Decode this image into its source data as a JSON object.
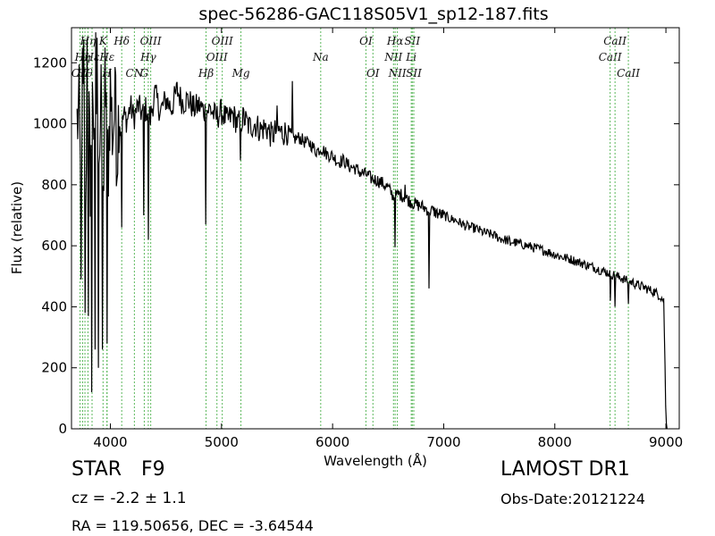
{
  "chart_data": {
    "type": "line",
    "title": "spec-56286-GAC118S05V1_sp12-187.fits",
    "xlabel": "Wavelength (Å)",
    "ylabel": "Flux (relative)",
    "xlim": [
      3650,
      9120
    ],
    "ylim": [
      0,
      1315
    ],
    "xticks": [
      4000,
      5000,
      6000,
      7000,
      8000,
      9000
    ],
    "yticks": [
      0,
      200,
      400,
      600,
      800,
      1000,
      1200
    ],
    "grid": false,
    "line_color": "#000000",
    "marker_color": "#5cb85c",
    "spectrum": [
      [
        3700,
        1000
      ],
      [
        3720,
        1040
      ],
      [
        3740,
        620
      ],
      [
        3760,
        1200
      ],
      [
        3780,
        780
      ],
      [
        3800,
        1100
      ],
      [
        3820,
        820
      ],
      [
        3840,
        1220
      ],
      [
        3860,
        760
      ],
      [
        3880,
        1180
      ],
      [
        3900,
        900
      ],
      [
        3920,
        1080
      ],
      [
        3940,
        800
      ],
      [
        3960,
        1150
      ],
      [
        3980,
        860
      ],
      [
        4000,
        1120
      ],
      [
        4020,
        960
      ],
      [
        4040,
        1060
      ],
      [
        4060,
        900
      ],
      [
        4080,
        1080
      ],
      [
        4100,
        980
      ],
      [
        4120,
        1030
      ],
      [
        4150,
        1010
      ],
      [
        4180,
        1060
      ],
      [
        4210,
        1020
      ],
      [
        4250,
        1060
      ],
      [
        4290,
        1030
      ],
      [
        4320,
        1050
      ],
      [
        4360,
        1020
      ],
      [
        4400,
        1100
      ],
      [
        4450,
        1040
      ],
      [
        4500,
        1080
      ],
      [
        4550,
        1050
      ],
      [
        4600,
        1110
      ],
      [
        4650,
        1070
      ],
      [
        4700,
        1080
      ],
      [
        4750,
        1050
      ],
      [
        4800,
        1060
      ],
      [
        4850,
        1040
      ],
      [
        4900,
        1050
      ],
      [
        4950,
        1020
      ],
      [
        5000,
        1040
      ],
      [
        5050,
        1010
      ],
      [
        5100,
        1030
      ],
      [
        5150,
        1000
      ],
      [
        5200,
        1020
      ],
      [
        5250,
        990
      ],
      [
        5300,
        1000
      ],
      [
        5350,
        980
      ],
      [
        5400,
        990
      ],
      [
        5450,
        960
      ],
      [
        5500,
        980
      ],
      [
        5550,
        970
      ],
      [
        5600,
        975
      ],
      [
        5650,
        950
      ],
      [
        5700,
        955
      ],
      [
        5750,
        940
      ],
      [
        5800,
        935
      ],
      [
        5850,
        910
      ],
      [
        5900,
        920
      ],
      [
        5950,
        900
      ],
      [
        6000,
        895
      ],
      [
        6050,
        875
      ],
      [
        6100,
        880
      ],
      [
        6150,
        860
      ],
      [
        6200,
        855
      ],
      [
        6250,
        840
      ],
      [
        6300,
        835
      ],
      [
        6350,
        820
      ],
      [
        6400,
        815
      ],
      [
        6450,
        805
      ],
      [
        6500,
        790
      ],
      [
        6550,
        760
      ],
      [
        6600,
        770
      ],
      [
        6650,
        760
      ],
      [
        6700,
        745
      ],
      [
        6750,
        735
      ],
      [
        6800,
        730
      ],
      [
        6850,
        720
      ],
      [
        6900,
        715
      ],
      [
        6950,
        705
      ],
      [
        7000,
        700
      ],
      [
        7050,
        690
      ],
      [
        7100,
        685
      ],
      [
        7150,
        675
      ],
      [
        7200,
        665
      ],
      [
        7250,
        660
      ],
      [
        7300,
        655
      ],
      [
        7350,
        645
      ],
      [
        7400,
        640
      ],
      [
        7450,
        635
      ],
      [
        7500,
        625
      ],
      [
        7550,
        620
      ],
      [
        7600,
        615
      ],
      [
        7650,
        610
      ],
      [
        7700,
        605
      ],
      [
        7750,
        600
      ],
      [
        7800,
        595
      ],
      [
        7850,
        590
      ],
      [
        7900,
        585
      ],
      [
        7950,
        578
      ],
      [
        8000,
        572
      ],
      [
        8050,
        565
      ],
      [
        8100,
        560
      ],
      [
        8150,
        555
      ],
      [
        8200,
        548
      ],
      [
        8250,
        542
      ],
      [
        8300,
        535
      ],
      [
        8350,
        530
      ],
      [
        8400,
        522
      ],
      [
        8450,
        515
      ],
      [
        8500,
        510
      ],
      [
        8550,
        500
      ],
      [
        8600,
        495
      ],
      [
        8650,
        485
      ],
      [
        8700,
        480
      ],
      [
        8750,
        470
      ],
      [
        8800,
        465
      ],
      [
        8850,
        455
      ],
      [
        8900,
        448
      ],
      [
        8950,
        435
      ],
      [
        8980,
        420
      ],
      [
        8990,
        250
      ],
      [
        9000,
        30
      ],
      [
        9010,
        0
      ]
    ],
    "dips": [
      [
        3735,
        490
      ],
      [
        3770,
        380
      ],
      [
        3800,
        370
      ],
      [
        3830,
        120
      ],
      [
        3860,
        260
      ],
      [
        3890,
        200
      ],
      [
        3930,
        260
      ],
      [
        3970,
        280
      ],
      [
        4102,
        660
      ],
      [
        4300,
        700
      ],
      [
        4340,
        620
      ],
      [
        4861,
        670
      ],
      [
        5170,
        880
      ],
      [
        5890,
        910
      ],
      [
        6563,
        595
      ],
      [
        6870,
        460
      ],
      [
        7600,
        600
      ],
      [
        8498,
        420
      ],
      [
        8542,
        400
      ],
      [
        8662,
        410
      ]
    ],
    "peaks": [
      [
        3750,
        1250
      ],
      [
        3790,
        1280
      ],
      [
        3870,
        1300
      ],
      [
        3950,
        1250
      ],
      [
        4050,
        1160
      ],
      [
        5640,
        1140
      ],
      [
        5500,
        1060
      ],
      [
        6650,
        800
      ]
    ],
    "lines": [
      {
        "name": "OII",
        "wl": 3727,
        "row": 3
      },
      {
        "name": "Hη",
        "wl": 3750,
        "row": 2
      },
      {
        "name": "Hθ",
        "wl": 3771,
        "row": 3
      },
      {
        "name": "Hη",
        "wl": 3798,
        "row": 1
      },
      {
        "name": "Hε",
        "wl": 3835,
        "row": 2
      },
      {
        "name": "K",
        "wl": 3934,
        "row": 1
      },
      {
        "name": "H",
        "wl": 3969,
        "row": 3
      },
      {
        "name": "Hε",
        "wl": 3970,
        "row": 2
      },
      {
        "name": "Hδ",
        "wl": 4102,
        "row": 1
      },
      {
        "name": "CN",
        "wl": 4216,
        "row": 3
      },
      {
        "name": "G",
        "wl": 4305,
        "row": 3
      },
      {
        "name": "Hγ",
        "wl": 4341,
        "row": 2
      },
      {
        "name": "OIII",
        "wl": 4363,
        "row": 1
      },
      {
        "name": "Hβ",
        "wl": 4861,
        "row": 3
      },
      {
        "name": "OIII",
        "wl": 4959,
        "row": 2
      },
      {
        "name": "OIII",
        "wl": 5007,
        "row": 1
      },
      {
        "name": "Mg",
        "wl": 5175,
        "row": 3
      },
      {
        "name": "Na",
        "wl": 5893,
        "row": 2
      },
      {
        "name": "OI",
        "wl": 6300,
        "row": 1
      },
      {
        "name": "OI",
        "wl": 6363,
        "row": 3
      },
      {
        "name": "NII",
        "wl": 6548,
        "row": 2
      },
      {
        "name": "Hα",
        "wl": 6563,
        "row": 1
      },
      {
        "name": "NII",
        "wl": 6583,
        "row": 3
      },
      {
        "name": "SII",
        "wl": 6717,
        "row": 1
      },
      {
        "name": "Li",
        "wl": 6708,
        "row": 2
      },
      {
        "name": "SII",
        "wl": 6731,
        "row": 3
      },
      {
        "name": "CaII",
        "wl": 8498,
        "row": 2
      },
      {
        "name": "CaII",
        "wl": 8542,
        "row": 1
      },
      {
        "name": "CaII",
        "wl": 8662,
        "row": 3
      }
    ]
  },
  "info": {
    "obj_class": "STAR",
    "subclass": "F9",
    "survey": "LAMOST DR1",
    "cz": "cz = -2.2  ± 1.1",
    "obs_date": "Obs-Date:20121224",
    "radec": "RA = 119.50656, DEC = -3.64544"
  }
}
